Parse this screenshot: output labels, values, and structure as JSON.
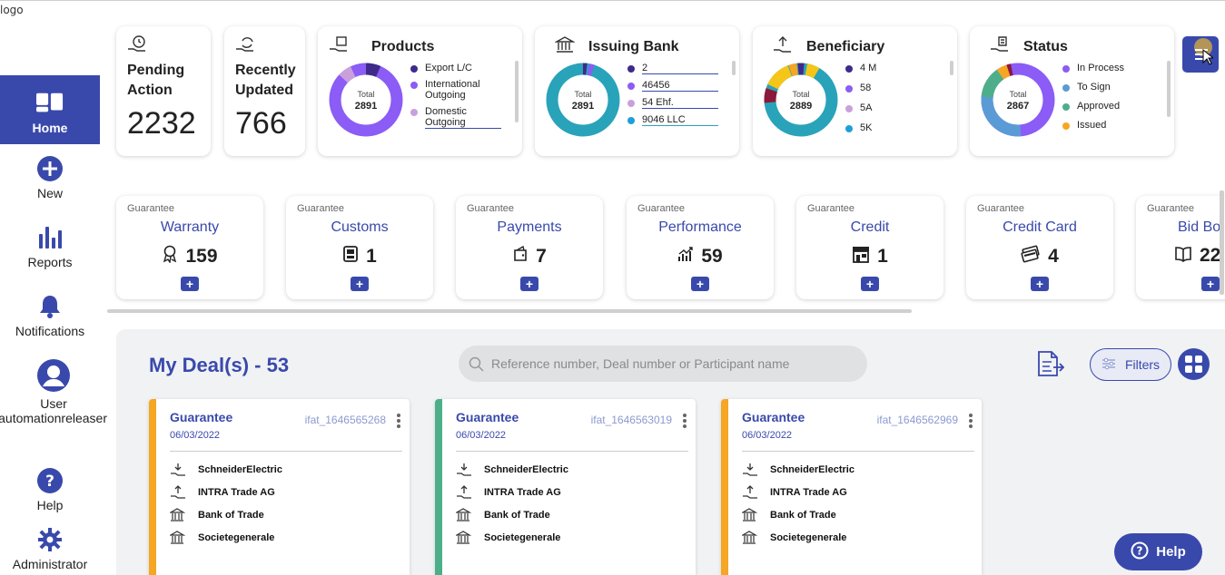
{
  "logo_alt": "logo",
  "sidebar": {
    "items": [
      {
        "label": "Home"
      },
      {
        "label": "New"
      },
      {
        "label": "Reports"
      },
      {
        "label": "Notifications"
      },
      {
        "label": "User"
      },
      {
        "label": "Help"
      },
      {
        "label": "Administrator"
      }
    ],
    "username": "automationreleaser"
  },
  "summary": {
    "pending": {
      "title_line1": "Pending",
      "title_line2": "Action",
      "value": "2232"
    },
    "recent": {
      "title_line1": "Recently",
      "title_line2": "Updated",
      "value": "766"
    },
    "products": {
      "title": "Products",
      "total_label": "Total",
      "total": "2891",
      "legend": [
        {
          "label": "Export L/C",
          "color": "#3f2a8c"
        },
        {
          "label": "International Outgoing",
          "color": "#8b5cf6"
        },
        {
          "label": "Domestic Outgoing",
          "color": "#c9a0dc"
        }
      ]
    },
    "issuing_bank": {
      "title": "Issuing Bank",
      "total_label": "Total",
      "total": "2891",
      "legend": [
        {
          "label": "2",
          "color": "#3f2a8c"
        },
        {
          "label": "46456",
          "color": "#8b5cf6"
        },
        {
          "label": "54 Ehf.",
          "color": "#c9a0dc"
        },
        {
          "label": "9046 LLC",
          "color": "#1e9fd9"
        }
      ]
    },
    "beneficiary": {
      "title": "Beneficiary",
      "total_label": "Total",
      "total": "2889",
      "legend": [
        {
          "label": "4 M",
          "color": "#3f2a8c"
        },
        {
          "label": "58",
          "color": "#8b5cf6"
        },
        {
          "label": "5A",
          "color": "#c9a0dc"
        },
        {
          "label": "5K",
          "color": "#1e9fd9"
        }
      ]
    },
    "status": {
      "title": "Status",
      "total_label": "Total",
      "total": "2867",
      "legend": [
        {
          "label": "In Process",
          "color": "#8b5cf6"
        },
        {
          "label": "To Sign",
          "color": "#5b9bd5"
        },
        {
          "label": "Approved",
          "color": "#4caf8a"
        },
        {
          "label": "Issued",
          "color": "#f5a623"
        }
      ]
    }
  },
  "guarantees": [
    {
      "sub": "Guarantee",
      "title": "Warranty",
      "count": "159",
      "icon": "award-icon"
    },
    {
      "sub": "Guarantee",
      "title": "Customs",
      "count": "1",
      "icon": "customs-icon"
    },
    {
      "sub": "Guarantee",
      "title": "Payments",
      "count": "7",
      "icon": "wallet-icon"
    },
    {
      "sub": "Guarantee",
      "title": "Performance",
      "count": "59",
      "icon": "performance-icon"
    },
    {
      "sub": "Guarantee",
      "title": "Credit",
      "count": "1",
      "icon": "store-icon"
    },
    {
      "sub": "Guarantee",
      "title": "Credit Card",
      "count": "4",
      "icon": "credit-card-icon"
    },
    {
      "sub": "Guarantee",
      "title": "Bid Bo",
      "count": "22",
      "icon": "book-icon"
    }
  ],
  "add_symbol": "+",
  "deals": {
    "title": "My Deal(s) - 53",
    "search_placeholder": "Reference number, Deal number or Participant name",
    "filters_label": "Filters",
    "items": [
      {
        "type": "Guarantee",
        "date": "06/03/2022",
        "ref": "ifat_1646565268",
        "accent": "#f5a623",
        "parties": [
          "SchneiderElectric",
          "INTRA Trade AG",
          "Bank of Trade",
          "Societegenerale"
        ]
      },
      {
        "type": "Guarantee",
        "date": "06/03/2022",
        "ref": "ifat_1646563019",
        "accent": "#4caf8a",
        "parties": [
          "SchneiderElectric",
          "INTRA Trade AG",
          "Bank of Trade",
          "Societegenerale"
        ]
      },
      {
        "type": "Guarantee",
        "date": "06/03/2022",
        "ref": "ifat_1646562969",
        "accent": "#f5a623",
        "parties": [
          "SchneiderElectric",
          "INTRA Trade AG",
          "Bank of Trade",
          "Societegenerale"
        ]
      }
    ]
  },
  "help_label": "Help",
  "colors": {
    "primary": "#3949ab"
  }
}
